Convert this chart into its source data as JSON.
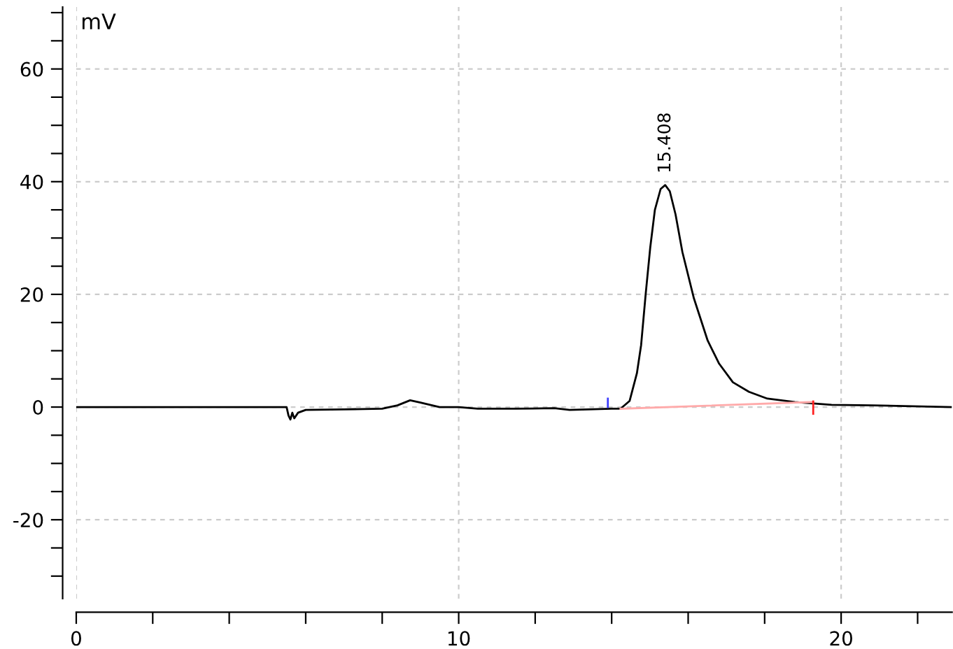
{
  "chart_data": {
    "type": "line",
    "ylabel": "mV",
    "xlim": [
      0,
      22.9
    ],
    "ylim": [
      -34,
      71
    ],
    "xticks": [
      0,
      {
        "value": 2,
        "label": null
      },
      {
        "value": 4,
        "label": null
      },
      {
        "value": 6,
        "label": null
      },
      {
        "value": 8,
        "label": null
      },
      10,
      {
        "value": 12,
        "label": null
      },
      {
        "value": 14,
        "label": null
      },
      {
        "value": 16,
        "label": null
      },
      {
        "value": 18,
        "label": null
      },
      20,
      {
        "value": 22,
        "label": null
      }
    ],
    "yticks": [
      {
        "value": -30,
        "label": null
      },
      {
        "value": -25,
        "label": null
      },
      -20,
      {
        "value": -15,
        "label": null
      },
      {
        "value": -10,
        "label": null
      },
      {
        "value": -5,
        "label": null
      },
      0,
      {
        "value": 5,
        "label": null
      },
      {
        "value": 10,
        "label": null
      },
      {
        "value": 15,
        "label": null
      },
      20,
      {
        "value": 25,
        "label": null
      },
      {
        "value": 30,
        "label": null
      },
      {
        "value": 35,
        "label": null
      },
      40,
      {
        "value": 45,
        "label": null
      },
      {
        "value": 50,
        "label": null
      },
      {
        "value": 55,
        "label": null
      },
      60,
      {
        "value": 65,
        "label": null
      },
      {
        "value": 70,
        "label": null
      }
    ],
    "grid": true,
    "marker": "none",
    "line_style": "solid",
    "series": [
      {
        "color": "#000000",
        "x": [
          0,
          3.0,
          4.5,
          5.5,
          5.55,
          5.6,
          5.65,
          5.7,
          5.8,
          6.0,
          7.0,
          8.0,
          8.4,
          8.73,
          9.0,
          9.5,
          10.0,
          10.5,
          11.5,
          12.5,
          12.9,
          13.4,
          14.0,
          14.23,
          14.47,
          14.66,
          14.77,
          14.89,
          15.01,
          15.13,
          15.28,
          15.4,
          15.52,
          15.67,
          15.85,
          16.15,
          16.51,
          16.81,
          17.17,
          17.59,
          18.07,
          18.79,
          19.75,
          20.8,
          22.87
        ],
        "values": [
          0,
          0,
          0,
          0,
          -1.5,
          -2.2,
          -1.0,
          -2.0,
          -1.0,
          -0.5,
          -0.4,
          -0.3,
          0.3,
          1.2,
          0.8,
          0.0,
          0.0,
          -0.3,
          -0.3,
          -0.2,
          -0.5,
          -0.4,
          -0.3,
          -0.3,
          1.1,
          6.0,
          11,
          20.1,
          28.4,
          35,
          38.7,
          39.4,
          38.3,
          34.2,
          27.5,
          19.3,
          11.8,
          7.7,
          4.4,
          2.7,
          1.5,
          0.9,
          0.4,
          0.3,
          0
        ]
      },
      {
        "color": "#ffaaaa",
        "x": [
          14.23,
          19.27
        ],
        "values": [
          -0.3,
          0.9
        ]
      },
      {
        "color": "#4040ff",
        "x": [
          13.9,
          13.9
        ],
        "values": [
          0,
          1.5
        ]
      },
      {
        "color": "#ff2020",
        "x": [
          19.27,
          19.27
        ],
        "values": [
          1,
          -1.2
        ]
      }
    ],
    "annotations": [
      {
        "text": "15.408",
        "x": 15.408,
        "y": 39.4
      }
    ]
  }
}
